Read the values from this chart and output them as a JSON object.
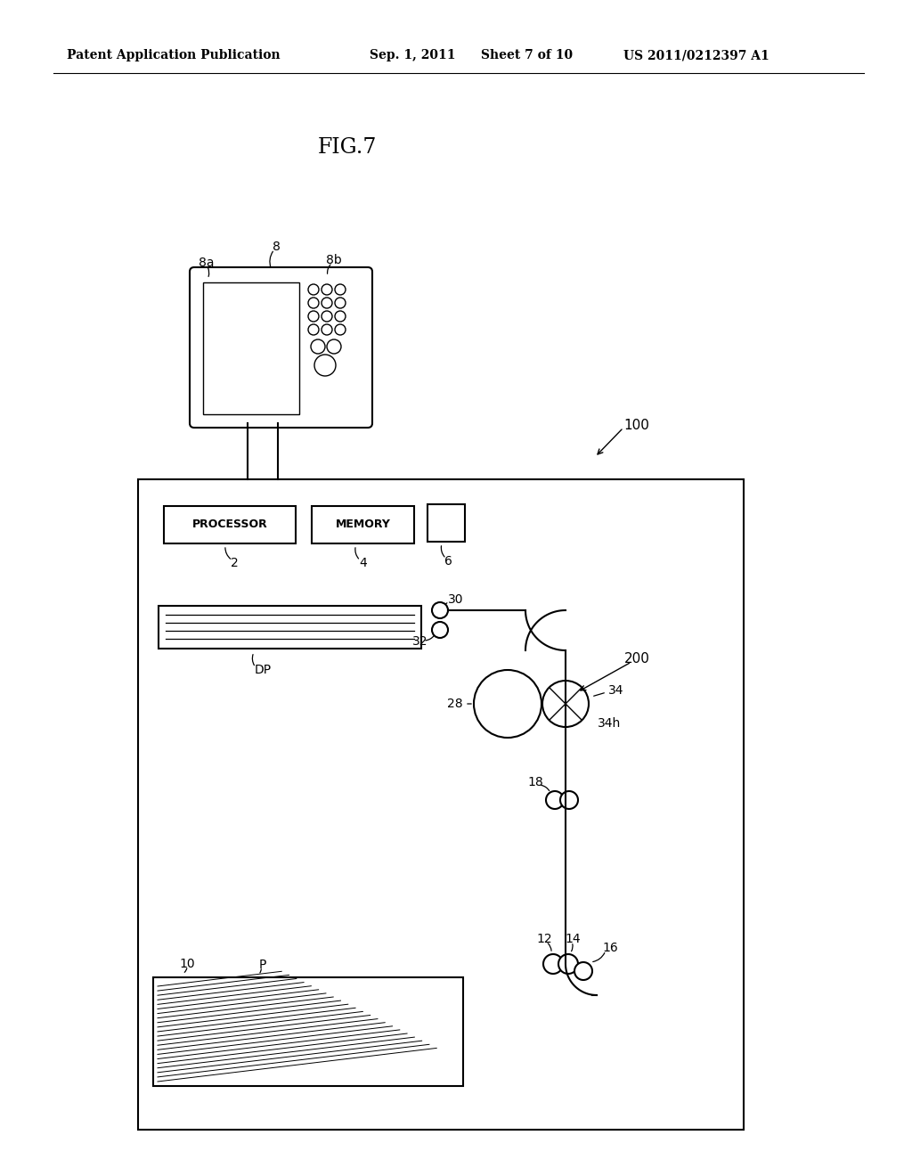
{
  "bg_color": "#ffffff",
  "header_left": "Patent Application Publication",
  "header_mid": "Sep. 1, 2011   Sheet 7 of 10",
  "header_right": "US 2011/0212397 A1",
  "fig_label": "FIG.7",
  "lw": 1.5,
  "lw_thin": 1.0,
  "black": "#000000"
}
